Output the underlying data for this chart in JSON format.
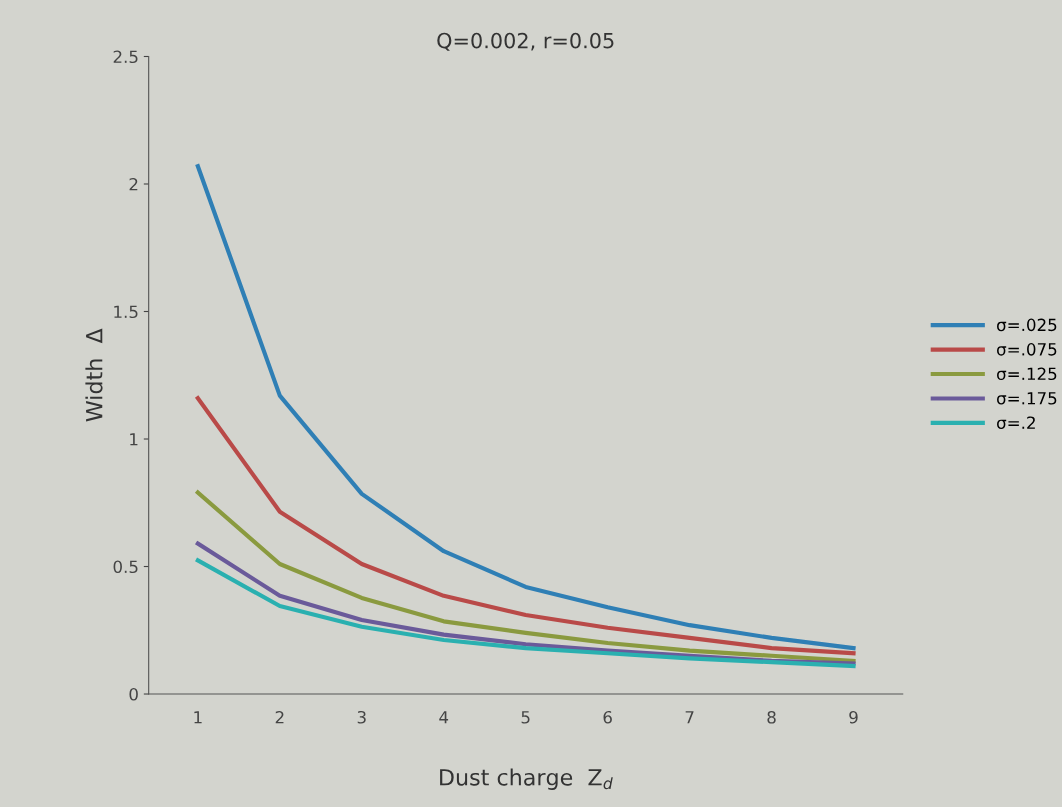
{
  "chart_data": {
    "type": "line",
    "title": "Q=0.002, r=0.05",
    "xlabel": "Dust charge  Z$_{d}$",
    "ylabel": "Width  Δ",
    "categories": [
      "1",
      "2",
      "3",
      "4",
      "5",
      "6",
      "7",
      "8",
      "9"
    ],
    "series": [
      {
        "name": "σ=.025",
        "color": "#2f7fb5",
        "values": [
          2.07,
          1.17,
          0.785,
          0.56,
          0.42,
          0.34,
          0.27,
          0.22,
          0.18
        ]
      },
      {
        "name": "σ=.075",
        "color": "#b94a48",
        "values": [
          1.16,
          0.715,
          0.51,
          0.385,
          0.31,
          0.26,
          0.22,
          0.18,
          0.16
        ]
      },
      {
        "name": "σ=.125",
        "color": "#8a9a3f",
        "values": [
          0.79,
          0.51,
          0.377,
          0.285,
          0.24,
          0.2,
          0.17,
          0.15,
          0.13
        ]
      },
      {
        "name": "σ=.175",
        "color": "#6a5a9a",
        "values": [
          0.59,
          0.385,
          0.29,
          0.233,
          0.195,
          0.17,
          0.15,
          0.13,
          0.12
        ]
      },
      {
        "name": "σ=.2",
        "color": "#2ab0b0",
        "values": [
          0.524,
          0.345,
          0.264,
          0.212,
          0.18,
          0.16,
          0.14,
          0.125,
          0.11
        ]
      }
    ],
    "ylim": [
      0,
      2.5
    ],
    "yticks": [
      0,
      0.5,
      1,
      1.5,
      2,
      2.5
    ],
    "grid": false,
    "legend": "right",
    "marker": "none",
    "line_style": "solid"
  }
}
